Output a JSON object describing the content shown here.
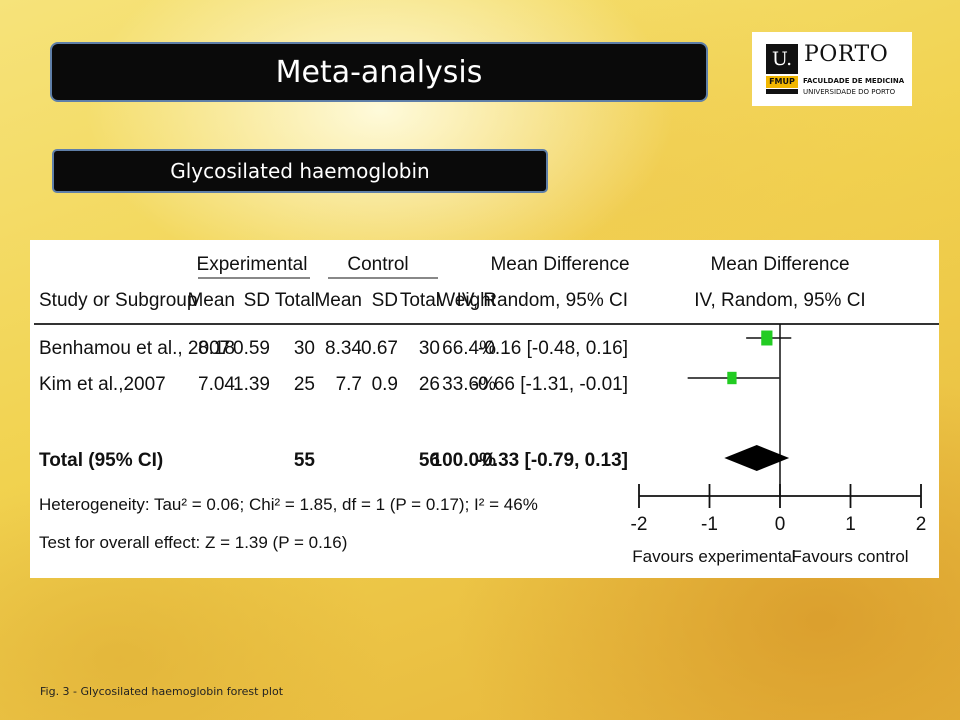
{
  "slide": {
    "title": "Meta-analysis",
    "subtitle": "Glycosilated haemoglobin",
    "caption": "Fig. 3 -  Glycosilated haemoglobin forest plot"
  },
  "logo": {
    "u": "U.",
    "porto": "PORTO",
    "fmup": "FMUP",
    "faculty": "FACULDADE DE MEDICINA",
    "university": "UNIVERSIDADE DO PORTO"
  },
  "chart_data": {
    "type": "forest",
    "header_groups": {
      "experimental": "Experimental",
      "control": "Control",
      "mean_difference_left": "Mean Difference",
      "mean_difference_right": "Mean Difference"
    },
    "columns": {
      "study": "Study or Subgroup",
      "exp_mean": "Mean",
      "exp_sd": "SD",
      "exp_total": "Total",
      "ctl_mean": "Mean",
      "ctl_sd": "SD",
      "ctl_total": "Total",
      "weight": "Weight",
      "ci": "IV, Random, 95% CI",
      "plot": "IV, Random, 95% CI"
    },
    "studies": [
      {
        "name": "Benhamou et al., 2007",
        "exp_mean": "8.18",
        "exp_sd": "0.59",
        "exp_total": "30",
        "ctl_mean": "8.34",
        "ctl_sd": "0.67",
        "ctl_total": "30",
        "weight": "66.4%",
        "ci_text": "-0.16 [-0.48, 0.16]",
        "md": -0.16,
        "lower": -0.48,
        "upper": 0.16,
        "weight_pct": 66.4
      },
      {
        "name": "Kim et al.,2007",
        "exp_mean": "7.04",
        "exp_sd": "1.39",
        "exp_total": "25",
        "ctl_mean": "7.7",
        "ctl_sd": "0.9",
        "ctl_total": "26",
        "weight": "33.6%",
        "ci_text": "-0.66 [-1.31, -0.01]",
        "md": -0.66,
        "lower": -1.31,
        "upper": -0.01,
        "weight_pct": 33.6
      }
    ],
    "total": {
      "name": "Total (95% CI)",
      "exp_total": "55",
      "ctl_total": "56",
      "weight": "100.0%",
      "ci_text": "-0.33 [-0.79, 0.13]",
      "md": -0.33,
      "lower": -0.79,
      "upper": 0.13
    },
    "heterogeneity": "Heterogeneity: Tau² = 0.06; Chi² = 1.85, df = 1 (P = 0.17); I² = 46%",
    "overall_effect": "Test for overall effect: Z = 1.39 (P = 0.16)",
    "xaxis": {
      "range": [
        -2,
        2
      ],
      "ticks": [
        -2,
        -1,
        0,
        1,
        2
      ],
      "tick_labels": [
        "-2",
        "-1",
        "0",
        "1",
        "2"
      ],
      "favours_left": "Favours experimental",
      "favours_right": "Favours control"
    },
    "colors": {
      "square": "#22cc22",
      "diamond": "#000000",
      "text": "#111111"
    }
  }
}
